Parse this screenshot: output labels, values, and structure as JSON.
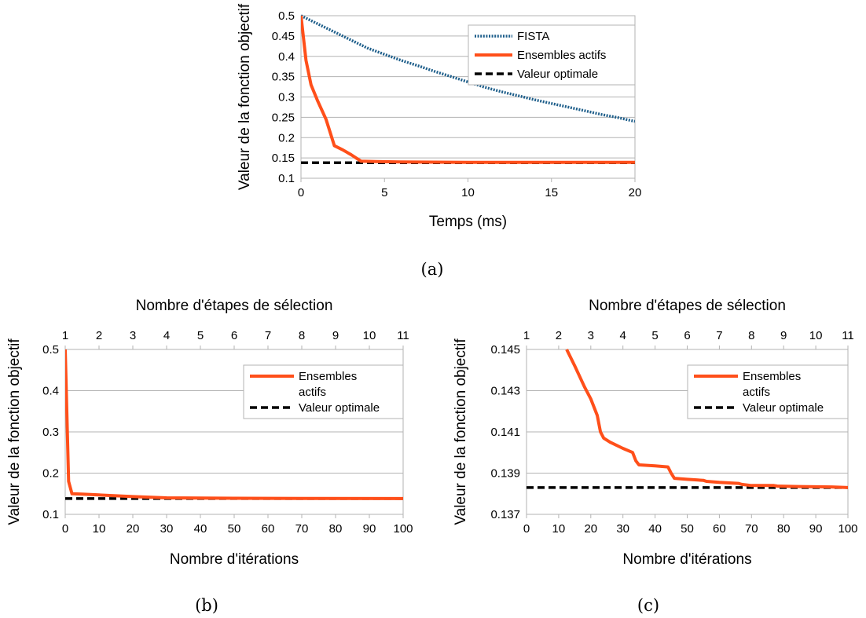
{
  "colors": {
    "fista": "#1f5f8b",
    "active_sets": "#ff4f1a",
    "optimal": "#000000",
    "grid": "#b3b3b3"
  },
  "chart_data": [
    {
      "id": "a",
      "type": "line",
      "caption": "(a)",
      "xlabel": "Temps (ms)",
      "ylabel": "Valeur de la fonction objectif",
      "xlim": [
        0,
        20
      ],
      "ylim": [
        0.1,
        0.5
      ],
      "xticks": [
        "0",
        "5",
        "10",
        "15",
        "20"
      ],
      "yticks": [
        "0.1",
        "0.15",
        "0.2",
        "0.25",
        "0.3",
        "0.35",
        "0.4",
        "0.45",
        "0.5"
      ],
      "grid": "horizontal",
      "legend_position": "top-right",
      "series": [
        {
          "name": "FISTA",
          "style": "dotted",
          "color": "#1f5f8b",
          "x": [
            0,
            1,
            2,
            3,
            4,
            5,
            6,
            7,
            8,
            9,
            10,
            11,
            12,
            13,
            14,
            15,
            16,
            17,
            18,
            19,
            20
          ],
          "y": [
            0.5,
            0.48,
            0.46,
            0.44,
            0.42,
            0.405,
            0.39,
            0.377,
            0.363,
            0.35,
            0.337,
            0.324,
            0.313,
            0.303,
            0.293,
            0.284,
            0.275,
            0.266,
            0.257,
            0.249,
            0.24
          ]
        },
        {
          "name": "Ensembles actifs",
          "style": "solid",
          "color": "#ff4f1a",
          "x": [
            0,
            0.3,
            0.6,
            1.0,
            1.5,
            2.0,
            2.5,
            3.0,
            3.6,
            4.5,
            6,
            10,
            15,
            20
          ],
          "y": [
            0.5,
            0.39,
            0.33,
            0.29,
            0.245,
            0.18,
            0.17,
            0.158,
            0.142,
            0.141,
            0.14,
            0.139,
            0.139,
            0.139
          ]
        },
        {
          "name": "Valeur optimale",
          "style": "dashed",
          "color": "#000000",
          "x": [
            0,
            20
          ],
          "y": [
            0.138,
            0.138
          ]
        }
      ]
    },
    {
      "id": "b",
      "type": "line",
      "caption": "(b)",
      "title": "Nombre d'étapes de sélection",
      "xlabel": "Nombre d'itérations",
      "ylabel": "Valeur de la fonction objectif",
      "xlim": [
        0,
        100
      ],
      "ylim": [
        0.1,
        0.5
      ],
      "xticks": [
        "0",
        "10",
        "20",
        "30",
        "40",
        "50",
        "60",
        "70",
        "80",
        "90",
        "100"
      ],
      "yticks": [
        "0.1",
        "0.2",
        "0.3",
        "0.4",
        "0.5"
      ],
      "top_ticks": [
        {
          "label": "1",
          "x": 0
        },
        {
          "label": "2",
          "x": 10
        },
        {
          "label": "3",
          "x": 20
        },
        {
          "label": "4",
          "x": 30
        },
        {
          "label": "5",
          "x": 40
        },
        {
          "label": "6",
          "x": 50
        },
        {
          "label": "7",
          "x": 60
        },
        {
          "label": "8",
          "x": 70
        },
        {
          "label": "9",
          "x": 80
        },
        {
          "label": "10",
          "x": 90
        },
        {
          "label": "11",
          "x": 100
        }
      ],
      "grid": "horizontal",
      "legend_position": "top-right",
      "series": [
        {
          "name": "Ensembles actifs",
          "style": "solid",
          "color": "#ff4f1a",
          "x": [
            0,
            1,
            2,
            5,
            10,
            20,
            30,
            50,
            70,
            100
          ],
          "y": [
            0.5,
            0.18,
            0.15,
            0.149,
            0.147,
            0.143,
            0.14,
            0.139,
            0.1385,
            0.1383
          ]
        },
        {
          "name": "Valeur optimale",
          "style": "dashed",
          "color": "#000000",
          "x": [
            0,
            100
          ],
          "y": [
            0.1383,
            0.1383
          ]
        }
      ]
    },
    {
      "id": "c",
      "type": "line",
      "caption": "(c)",
      "title": "Nombre d'étapes de sélection",
      "xlabel": "Nombre d'itérations",
      "ylabel": "Valeur de la fonction objectif",
      "xlim": [
        0,
        100
      ],
      "ylim": [
        0.137,
        0.145
      ],
      "xticks": [
        "0",
        "10",
        "20",
        "30",
        "40",
        "50",
        "60",
        "70",
        "80",
        "90",
        "100"
      ],
      "yticks": [
        "0.137",
        "0.139",
        "0.141",
        "0.143",
        "0.145"
      ],
      "ytick_values": [
        0.137,
        0.139,
        0.141,
        0.143,
        0.145
      ],
      "top_ticks": [
        {
          "label": "1",
          "x": 0
        },
        {
          "label": "2",
          "x": 10
        },
        {
          "label": "3",
          "x": 20
        },
        {
          "label": "4",
          "x": 30
        },
        {
          "label": "5",
          "x": 40
        },
        {
          "label": "6",
          "x": 50
        },
        {
          "label": "7",
          "x": 60
        },
        {
          "label": "8",
          "x": 70
        },
        {
          "label": "9",
          "x": 80
        },
        {
          "label": "10",
          "x": 90
        },
        {
          "label": "11",
          "x": 100
        }
      ],
      "grid": "horizontal",
      "legend_position": "top-right",
      "series": [
        {
          "name": "Ensembles actifs",
          "style": "solid",
          "color": "#ff4f1a",
          "x": [
            12.5,
            15,
            18,
            20,
            22,
            23,
            24,
            26,
            30,
            33,
            34,
            35,
            40,
            44,
            45,
            46,
            50,
            55,
            56,
            60,
            66,
            67,
            70,
            77,
            78,
            85,
            95,
            100
          ],
          "y": [
            0.145,
            0.1442,
            0.1432,
            0.1426,
            0.1418,
            0.141,
            0.1407,
            0.1405,
            0.1402,
            0.14,
            0.1396,
            0.1394,
            0.13935,
            0.1393,
            0.139,
            0.13875,
            0.1387,
            0.13865,
            0.1386,
            0.13855,
            0.1385,
            0.13845,
            0.1384,
            0.1384,
            0.13837,
            0.13835,
            0.13833,
            0.1383
          ]
        },
        {
          "name": "Valeur optimale",
          "style": "dashed",
          "color": "#000000",
          "x": [
            0,
            100
          ],
          "y": [
            0.1383,
            0.1383
          ]
        }
      ]
    }
  ]
}
